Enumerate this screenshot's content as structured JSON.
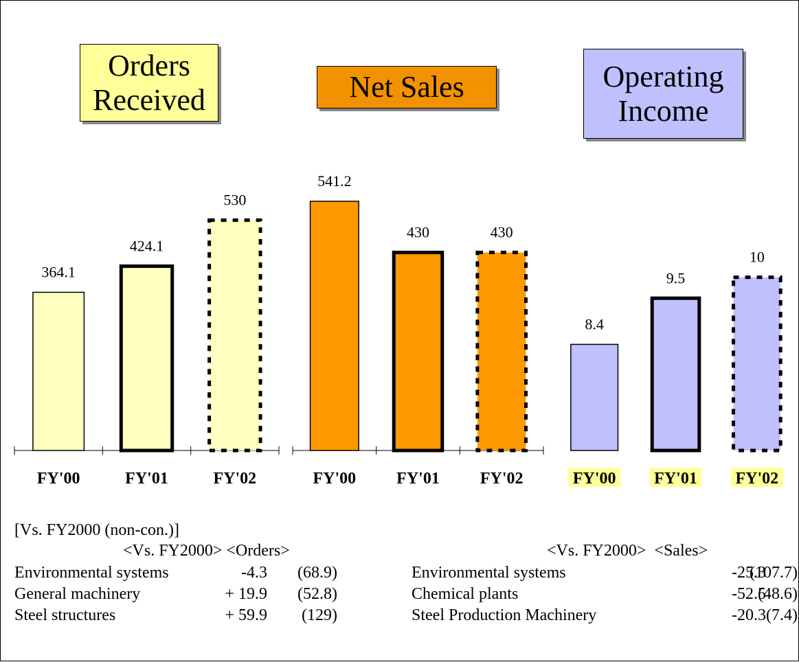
{
  "chart_data": [
    {
      "type": "bar",
      "title": "Orders Received",
      "title_color": "#ffff99",
      "categories": [
        "FY'00",
        "FY'01",
        "FY'02"
      ],
      "values": [
        364.1,
        424.1,
        530
      ],
      "color": "#ffffc0",
      "outline": [
        "thin",
        "bold",
        "dashed"
      ],
      "ylim": [
        0,
        640
      ],
      "baseline_axis": true
    },
    {
      "type": "bar",
      "title": "Net Sales",
      "title_color": "#f39200",
      "categories": [
        "FY'00",
        "FY'01",
        "FY'02"
      ],
      "values": [
        541.2,
        430,
        430
      ],
      "color": "#ff9900",
      "outline": [
        "thin",
        "bold",
        "dashed"
      ],
      "ylim": [
        0,
        604
      ],
      "baseline_axis": true
    },
    {
      "type": "bar",
      "title": "Operating Income",
      "title_color": "#c0c0ff",
      "categories": [
        "FY'00",
        "FY'01",
        "FY'02"
      ],
      "values": [
        8.4,
        9.5,
        10
      ],
      "color": "#c0c0ff",
      "outline": [
        "thin",
        "bold",
        "dashed"
      ],
      "ylim": [
        5.87,
        12.5
      ],
      "baseline_axis": false,
      "label_highlight": "#ffff99"
    }
  ],
  "notes": {
    "heading": "[Vs. FY2000 (non-con.)]",
    "orders": {
      "header": "<Vs. FY2000> <Orders>",
      "rows": [
        [
          "Environmental systems",
          "-4.3",
          "(68.9)"
        ],
        [
          "General machinery",
          "+ 19.9",
          "(52.8)"
        ],
        [
          "Steel structures",
          "+ 59.9",
          "(129)"
        ]
      ]
    },
    "sales": {
      "header": "<Vs. FY2000>  <Sales>",
      "rows": [
        [
          "Environmental systems",
          "-25.3",
          "(107.7)"
        ],
        [
          "Chemical plants",
          "-52.5",
          "(48.6)"
        ],
        [
          "Steel Production Machinery",
          "-20.3",
          "(7.4)"
        ]
      ]
    }
  }
}
